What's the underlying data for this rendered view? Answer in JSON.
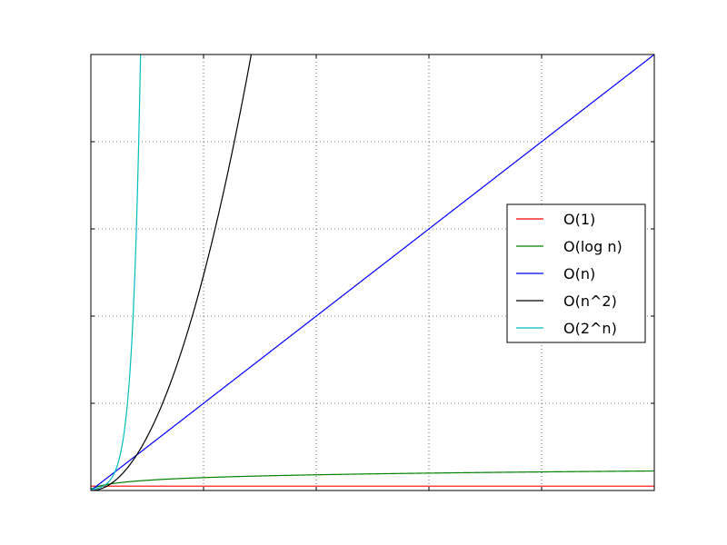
{
  "chart_data": {
    "type": "line",
    "title": "",
    "xlabel": "",
    "ylabel": "",
    "xlim": [
      0,
      100
    ],
    "ylim": [
      0,
      100
    ],
    "grid": true,
    "legend_position": "center-right",
    "series": [
      {
        "name": "O(1)",
        "color": "#ff0000",
        "formula": "constant"
      },
      {
        "name": "O(log n)",
        "color": "#008000",
        "formula": "log"
      },
      {
        "name": "O(n)",
        "color": "#0000ff",
        "formula": "linear"
      },
      {
        "name": "O(n^2)",
        "color": "#000000",
        "formula": "quadratic"
      },
      {
        "name": "O(2^n)",
        "color": "#00bfbf",
        "formula": "exponential"
      }
    ]
  }
}
